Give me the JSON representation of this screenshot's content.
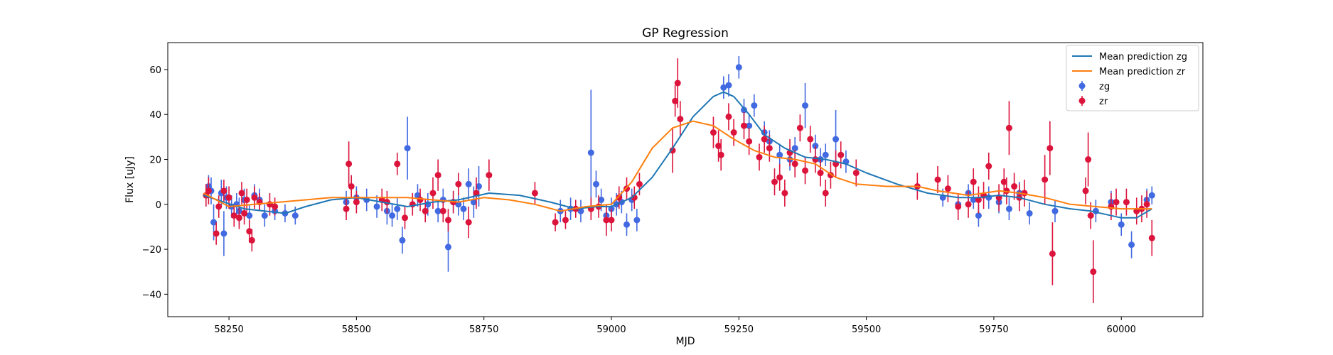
{
  "chart_data": {
    "type": "scatter",
    "title": "GP Regression",
    "xlabel": "MJD",
    "ylabel": "Flux [uJy]",
    "xlim": [
      58130,
      60160
    ],
    "ylim": [
      -50,
      72
    ],
    "xticks": [
      58250,
      58500,
      58750,
      59000,
      59250,
      59500,
      59750,
      60000
    ],
    "yticks": [
      -40,
      -20,
      0,
      20,
      40,
      60
    ],
    "legend_position": "top-right",
    "legend": [
      "Mean prediction zg",
      "Mean prediction zr",
      "zg",
      "zr"
    ],
    "lines": [
      {
        "name": "Mean prediction zg",
        "color": "#1f77b4",
        "points": [
          [
            58200,
            4
          ],
          [
            58240,
            1
          ],
          [
            58280,
            -2
          ],
          [
            58320,
            -3
          ],
          [
            58360,
            -4
          ],
          [
            58400,
            -1
          ],
          [
            58450,
            2
          ],
          [
            58500,
            3
          ],
          [
            58550,
            1
          ],
          [
            58600,
            -1
          ],
          [
            58650,
            1
          ],
          [
            58700,
            2
          ],
          [
            58760,
            5
          ],
          [
            58820,
            4
          ],
          [
            58880,
            1
          ],
          [
            58930,
            -2
          ],
          [
            58970,
            -1
          ],
          [
            59000,
            -1
          ],
          [
            59040,
            3
          ],
          [
            59080,
            12
          ],
          [
            59120,
            25
          ],
          [
            59160,
            39
          ],
          [
            59200,
            48
          ],
          [
            59220,
            50
          ],
          [
            59240,
            48
          ],
          [
            59270,
            40
          ],
          [
            59300,
            31
          ],
          [
            59340,
            25
          ],
          [
            59380,
            21
          ],
          [
            59420,
            20
          ],
          [
            59460,
            18
          ],
          [
            59500,
            14
          ],
          [
            59560,
            9
          ],
          [
            59620,
            5
          ],
          [
            59680,
            3
          ],
          [
            59720,
            3
          ],
          [
            59760,
            4
          ],
          [
            59800,
            3
          ],
          [
            59850,
            0
          ],
          [
            59900,
            -2
          ],
          [
            59940,
            -3
          ],
          [
            60000,
            -6
          ],
          [
            60030,
            -6
          ],
          [
            60060,
            -2
          ]
        ]
      },
      {
        "name": "Mean prediction zr",
        "color": "#ff7f0e",
        "points": [
          [
            58200,
            5
          ],
          [
            58250,
            -1
          ],
          [
            58300,
            0
          ],
          [
            58350,
            1
          ],
          [
            58400,
            2
          ],
          [
            58450,
            3
          ],
          [
            58500,
            3
          ],
          [
            58550,
            3
          ],
          [
            58600,
            3
          ],
          [
            58650,
            2
          ],
          [
            58700,
            1
          ],
          [
            58750,
            3
          ],
          [
            58800,
            2
          ],
          [
            58850,
            0
          ],
          [
            58900,
            -3
          ],
          [
            58950,
            -1
          ],
          [
            59000,
            0
          ],
          [
            59040,
            10
          ],
          [
            59080,
            25
          ],
          [
            59120,
            34
          ],
          [
            59160,
            37
          ],
          [
            59200,
            35
          ],
          [
            59240,
            29
          ],
          [
            59280,
            24
          ],
          [
            59320,
            21
          ],
          [
            59360,
            20
          ],
          [
            59400,
            18
          ],
          [
            59440,
            12
          ],
          [
            59480,
            9
          ],
          [
            59540,
            8
          ],
          [
            59600,
            8
          ],
          [
            59640,
            6
          ],
          [
            59700,
            4
          ],
          [
            59760,
            6
          ],
          [
            59800,
            5
          ],
          [
            59850,
            3
          ],
          [
            59900,
            0
          ],
          [
            59950,
            -1
          ],
          [
            60000,
            -2
          ],
          [
            60060,
            -2
          ]
        ]
      }
    ],
    "series": [
      {
        "name": "zg",
        "color": "#4169e1",
        "x": [
          58210,
          58215,
          58220,
          58235,
          58240,
          58245,
          58255,
          58265,
          58270,
          58280,
          58290,
          58300,
          58310,
          58320,
          58340,
          58360,
          58380,
          58480,
          58500,
          58520,
          58540,
          58560,
          58570,
          58580,
          58590,
          58600,
          58620,
          58640,
          58660,
          58670,
          58680,
          58690,
          58700,
          58710,
          58720,
          58730,
          58740,
          58900,
          58920,
          58940,
          58960,
          58970,
          58980,
          58990,
          59000,
          59010,
          59020,
          59030,
          59040,
          59050,
          59220,
          59230,
          59250,
          59260,
          59270,
          59280,
          59300,
          59310,
          59330,
          59350,
          59360,
          59380,
          59400,
          59410,
          59420,
          59440,
          59460,
          59650,
          59680,
          59700,
          59710,
          59720,
          59740,
          59760,
          59780,
          59800,
          59820,
          59870,
          59950,
          59980,
          60000,
          60020,
          60050,
          60060
        ],
        "y": [
          8,
          6,
          -8,
          5,
          -13,
          3,
          -1,
          0,
          -3,
          2,
          -5,
          4,
          2,
          -5,
          -3,
          -4,
          -5,
          1,
          3,
          2,
          -1,
          -3,
          -5,
          -2,
          -16,
          25,
          4,
          0,
          -3,
          2,
          -19,
          1,
          0,
          -2,
          9,
          1,
          8,
          -3,
          -2,
          -3,
          23,
          9,
          2,
          -5,
          -2,
          0,
          1,
          -9,
          2,
          -7,
          52,
          53,
          61,
          42,
          35,
          44,
          32,
          28,
          22,
          20,
          25,
          44,
          26,
          20,
          22,
          29,
          19,
          3,
          0,
          5,
          2,
          -5,
          3,
          1,
          -2,
          5,
          -4,
          -3,
          -3,
          1,
          -9,
          -18,
          2,
          4
        ],
        "err": [
          5,
          6,
          8,
          6,
          10,
          5,
          5,
          5,
          6,
          5,
          5,
          5,
          5,
          5,
          4,
          4,
          4,
          5,
          5,
          5,
          5,
          6,
          5,
          5,
          6,
          14,
          5,
          5,
          5,
          5,
          11,
          5,
          5,
          5,
          7,
          7,
          9,
          5,
          5,
          5,
          28,
          6,
          5,
          5,
          5,
          5,
          5,
          5,
          5,
          5,
          5,
          5,
          5,
          5,
          5,
          5,
          5,
          5,
          5,
          5,
          5,
          10,
          5,
          5,
          5,
          13,
          5,
          4,
          4,
          4,
          4,
          5,
          5,
          5,
          5,
          5,
          5,
          5,
          5,
          5,
          5,
          6,
          5,
          4
        ],
        "is_error_bar": true
      },
      {
        "name": "zr",
        "color": "#dc143c",
        "x": [
          58205,
          58210,
          58225,
          58230,
          58240,
          58250,
          58260,
          58270,
          58275,
          58280,
          58285,
          58290,
          58295,
          58300,
          58310,
          58330,
          58340,
          58480,
          58485,
          58490,
          58500,
          58550,
          58560,
          58580,
          58595,
          58610,
          58625,
          58635,
          58650,
          58660,
          58670,
          58680,
          58690,
          58700,
          58720,
          58735,
          58760,
          58850,
          58890,
          58910,
          58930,
          58960,
          58975,
          58990,
          59000,
          59015,
          59030,
          59045,
          59055,
          59120,
          59125,
          59130,
          59135,
          59200,
          59210,
          59215,
          59230,
          59240,
          59260,
          59270,
          59290,
          59300,
          59310,
          59320,
          59330,
          59340,
          59350,
          59360,
          59370,
          59380,
          59390,
          59400,
          59410,
          59420,
          59430,
          59440,
          59450,
          59480,
          59600,
          59640,
          59660,
          59680,
          59700,
          59710,
          59720,
          59730,
          59740,
          59760,
          59770,
          59775,
          59780,
          59790,
          59800,
          59810,
          59850,
          59860,
          59865,
          59930,
          59935,
          59940,
          59945,
          59980,
          59990,
          60010,
          60030,
          60040,
          60050,
          60060
        ],
        "y": [
          4,
          6,
          -13,
          -1,
          6,
          3,
          -5,
          -6,
          5,
          -4,
          2,
          -12,
          -16,
          3,
          1,
          0,
          -1,
          -2,
          18,
          8,
          1,
          2,
          1,
          18,
          -6,
          0,
          2,
          -3,
          5,
          13,
          -3,
          -7,
          1,
          9,
          -8,
          5,
          13,
          5,
          -8,
          -7,
          -2,
          -2,
          -1,
          -7,
          -7,
          3,
          7,
          3,
          9,
          24,
          46,
          54,
          38,
          32,
          26,
          22,
          39,
          32,
          35,
          28,
          21,
          29,
          25,
          10,
          12,
          5,
          23,
          18,
          34,
          15,
          29,
          20,
          14,
          5,
          13,
          18,
          22,
          14,
          8,
          11,
          7,
          -1,
          0,
          10,
          2,
          4,
          17,
          3,
          10,
          6,
          34,
          8,
          3,
          5,
          11,
          25,
          -22,
          6,
          20,
          -5,
          -30,
          -1,
          1,
          1,
          -3,
          -2,
          0,
          -15
        ],
        "err": [
          5,
          6,
          5,
          5,
          5,
          5,
          5,
          5,
          5,
          5,
          5,
          5,
          5,
          5,
          4,
          5,
          4,
          5,
          10,
          5,
          5,
          5,
          5,
          5,
          5,
          5,
          5,
          5,
          7,
          7,
          5,
          5,
          5,
          5,
          7,
          7,
          7,
          5,
          4,
          4,
          4,
          5,
          5,
          7,
          5,
          5,
          5,
          5,
          5,
          10,
          7,
          11,
          8,
          7,
          7,
          7,
          6,
          6,
          6,
          6,
          6,
          6,
          6,
          6,
          6,
          6,
          6,
          6,
          6,
          6,
          6,
          6,
          6,
          6,
          6,
          6,
          6,
          6,
          6,
          6,
          6,
          6,
          6,
          6,
          6,
          6,
          6,
          6,
          6,
          6,
          12,
          6,
          6,
          6,
          11,
          12,
          14,
          6,
          12,
          6,
          14,
          6,
          6,
          6,
          6,
          6,
          6,
          8
        ],
        "is_error_bar": true
      }
    ]
  }
}
